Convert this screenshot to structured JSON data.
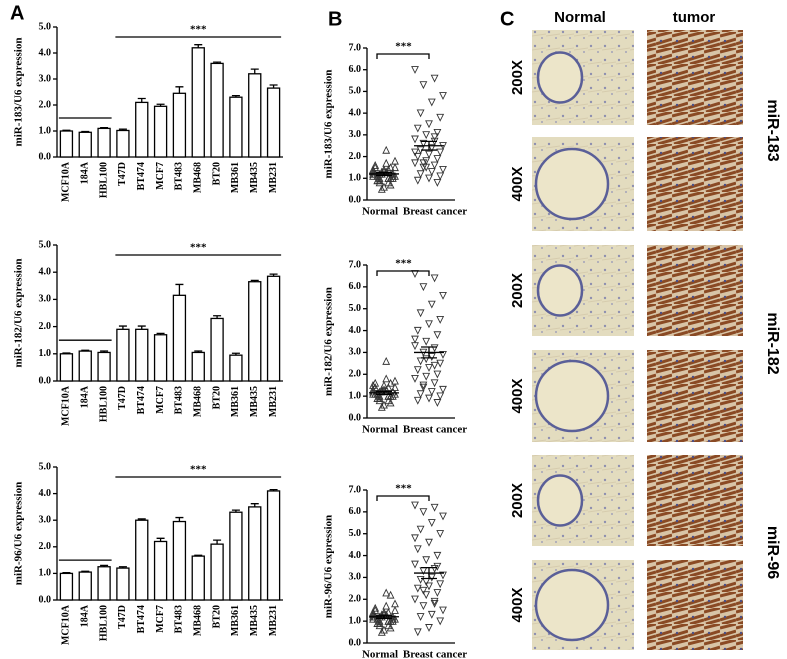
{
  "panel_labels": [
    "A",
    "B",
    "C"
  ],
  "chart_data": [
    {
      "type": "bar",
      "y_label": "miR-183/U6 expression",
      "annotation": "***",
      "categories": [
        "MCF10A",
        "184A",
        "HBL100",
        "T47D",
        "BT474",
        "MCF7",
        "BT483",
        "MB468",
        "BT20",
        "MB361",
        "MB435",
        "MB231"
      ],
      "values": [
        1.0,
        0.95,
        1.1,
        1.02,
        2.1,
        1.95,
        2.45,
        4.2,
        3.6,
        2.3,
        3.2,
        2.65
      ],
      "errors": [
        0.03,
        0.03,
        0.03,
        0.05,
        0.15,
        0.08,
        0.25,
        0.12,
        0.05,
        0.06,
        0.18,
        0.12
      ],
      "color": "#ffffff",
      "ylim": [
        0,
        5
      ],
      "yticks": [
        {
          "value": 0,
          "label": "0.0"
        },
        {
          "value": 1,
          "label": "1.0"
        },
        {
          "value": 2,
          "label": "2.0"
        },
        {
          "value": 3,
          "label": "3.0"
        },
        {
          "value": 4,
          "label": "4.0"
        },
        {
          "value": 5,
          "label": "5.0"
        }
      ]
    },
    {
      "type": "bar",
      "y_label": "miR-182/U6 expression",
      "annotation": "***",
      "categories": [
        "MCF10A",
        "184A",
        "HBL100",
        "T47D",
        "BT474",
        "MCF7",
        "BT483",
        "MB468",
        "BT20",
        "MB361",
        "MB435",
        "MB231"
      ],
      "values": [
        1.0,
        1.1,
        1.05,
        1.9,
        1.9,
        1.7,
        3.15,
        1.05,
        2.3,
        0.95,
        3.65,
        3.85
      ],
      "errors": [
        0.03,
        0.03,
        0.05,
        0.12,
        0.12,
        0.05,
        0.4,
        0.05,
        0.1,
        0.07,
        0.05,
        0.08
      ],
      "color": "#ffffff",
      "ylim": [
        0,
        5
      ],
      "yticks": [
        {
          "value": 0,
          "label": "0.0"
        },
        {
          "value": 1,
          "label": "1.0"
        },
        {
          "value": 2,
          "label": "2.0"
        },
        {
          "value": 3,
          "label": "3.0"
        },
        {
          "value": 4,
          "label": "4.0"
        },
        {
          "value": 5,
          "label": "5.0"
        }
      ]
    },
    {
      "type": "bar",
      "y_label": "miR-96/U6 expression",
      "annotation": "***",
      "categories": [
        "MCF10A",
        "184A",
        "HBL100",
        "T47D",
        "BT474",
        "MCF7",
        "BT483",
        "MB468",
        "BT20",
        "MB361",
        "MB435",
        "MB231"
      ],
      "values": [
        1.0,
        1.05,
        1.25,
        1.2,
        3.0,
        2.2,
        2.95,
        1.65,
        2.1,
        3.3,
        3.5,
        4.1
      ],
      "errors": [
        0.03,
        0.03,
        0.05,
        0.05,
        0.05,
        0.12,
        0.15,
        0.03,
        0.15,
        0.08,
        0.12,
        0.05
      ],
      "color": "#ffffff",
      "ylim": [
        0,
        5
      ],
      "yticks": [
        {
          "value": 0,
          "label": "0.0"
        },
        {
          "value": 1,
          "label": "1.0"
        },
        {
          "value": 2,
          "label": "2.0"
        },
        {
          "value": 3,
          "label": "3.0"
        },
        {
          "value": 4,
          "label": "4.0"
        },
        {
          "value": 5,
          "label": "5.0"
        }
      ]
    },
    {
      "type": "strip",
      "y_label": "miR-183/U6 expression",
      "annotation": "***",
      "categories": [
        "Normal",
        "Breast cancer"
      ],
      "groups": [
        {
          "values": [
            1.2,
            1.0,
            0.8,
            1.5,
            1.3,
            0.9,
            1.1,
            1.4,
            1.6,
            0.7,
            1.2,
            1.3,
            1.0,
            0.9,
            1.8,
            2.3,
            1.1,
            1.2,
            0.6,
            1.5,
            1.0,
            1.3,
            1.4,
            0.8,
            1.2,
            1.1,
            1.7,
            0.9,
            1.0,
            1.3,
            1.2,
            1.5,
            0.5,
            1.1,
            1.4,
            1.0
          ],
          "mean": 1.2,
          "sem": 0.07
        },
        {
          "values": [
            6.0,
            5.6,
            5.3,
            4.8,
            4.5,
            4.0,
            3.8,
            3.5,
            3.3,
            3.1,
            3.0,
            2.8,
            2.7,
            2.6,
            2.5,
            2.4,
            2.3,
            2.2,
            2.1,
            2.0,
            1.9,
            1.8,
            1.7,
            1.6,
            1.5,
            1.4,
            1.3,
            1.2,
            1.1,
            1.0,
            0.9,
            0.8,
            1.5,
            2.2,
            2.9,
            1.7
          ],
          "mean": 2.5,
          "sem": 0.2
        }
      ],
      "ylim": [
        0,
        7
      ],
      "yticks": [
        {
          "value": 0,
          "label": "0.0"
        },
        {
          "value": 1,
          "label": "1.0"
        },
        {
          "value": 2,
          "label": "2.0"
        },
        {
          "value": 3,
          "label": "3.0"
        },
        {
          "value": 4,
          "label": "4.0"
        },
        {
          "value": 5,
          "label": "5.0"
        },
        {
          "value": 6,
          "label": "6.0"
        },
        {
          "value": 7,
          "label": "7.0"
        }
      ]
    },
    {
      "type": "strip",
      "y_label": "miR-182/U6 expression",
      "annotation": "***",
      "categories": [
        "Normal",
        "Breast cancer"
      ],
      "groups": [
        {
          "values": [
            1.1,
            1.0,
            0.8,
            1.4,
            1.3,
            0.9,
            1.2,
            1.5,
            1.6,
            0.7,
            1.2,
            1.3,
            1.0,
            0.9,
            1.7,
            2.6,
            1.1,
            1.2,
            0.6,
            1.4,
            1.0,
            1.3,
            1.5,
            0.8,
            1.2,
            1.1,
            1.8,
            0.9,
            1.0,
            1.3,
            1.1,
            1.6,
            0.5,
            1.2,
            1.4,
            1.0
          ],
          "mean": 1.15,
          "sem": 0.07
        },
        {
          "values": [
            6.6,
            6.4,
            6.0,
            5.6,
            5.2,
            4.8,
            4.5,
            4.3,
            4.0,
            3.8,
            3.5,
            3.3,
            3.2,
            3.0,
            2.9,
            2.8,
            2.6,
            2.5,
            2.3,
            2.2,
            2.0,
            1.9,
            1.8,
            1.6,
            1.5,
            1.3,
            1.2,
            1.1,
            1.0,
            0.9,
            0.8,
            0.7,
            2.7,
            3.6,
            2.4,
            1.4
          ],
          "mean": 3.0,
          "sem": 0.25
        }
      ],
      "ylim": [
        0,
        7
      ],
      "yticks": [
        {
          "value": 0,
          "label": "0.0"
        },
        {
          "value": 1,
          "label": "1.0"
        },
        {
          "value": 2,
          "label": "2.0"
        },
        {
          "value": 3,
          "label": "3.0"
        },
        {
          "value": 4,
          "label": "4.0"
        },
        {
          "value": 5,
          "label": "5.0"
        },
        {
          "value": 6,
          "label": "6.0"
        },
        {
          "value": 7,
          "label": "7.0"
        }
      ]
    },
    {
      "type": "strip",
      "y_label": "miR-96/U6 expression",
      "annotation": "***",
      "categories": [
        "Normal",
        "Breast cancer"
      ],
      "groups": [
        {
          "values": [
            1.2,
            1.0,
            0.8,
            1.5,
            1.3,
            0.9,
            1.1,
            1.4,
            1.6,
            0.7,
            1.2,
            1.3,
            1.0,
            0.9,
            1.8,
            2.3,
            1.1,
            1.2,
            0.6,
            1.5,
            1.0,
            1.3,
            1.4,
            0.8,
            1.2,
            1.1,
            1.7,
            0.9,
            1.0,
            1.3,
            1.2,
            2.2,
            0.5,
            1.1,
            1.4,
            1.0
          ],
          "mean": 1.2,
          "sem": 0.07
        },
        {
          "values": [
            6.3,
            6.2,
            6.0,
            5.8,
            5.5,
            5.2,
            5.0,
            4.6,
            4.3,
            4.0,
            3.8,
            3.6,
            3.4,
            3.3,
            3.1,
            3.0,
            2.9,
            2.7,
            2.6,
            2.5,
            2.3,
            2.2,
            2.0,
            1.9,
            1.7,
            1.5,
            1.3,
            1.2,
            1.0,
            0.7,
            0.5,
            3.5,
            2.8,
            4.8,
            1.8,
            2.4
          ],
          "mean": 3.2,
          "sem": 0.25
        }
      ],
      "ylim": [
        0,
        7
      ],
      "yticks": [
        {
          "value": 0,
          "label": "0.0"
        },
        {
          "value": 1,
          "label": "1.0"
        },
        {
          "value": 2,
          "label": "2.0"
        },
        {
          "value": 3,
          "label": "3.0"
        },
        {
          "value": 4,
          "label": "4.0"
        },
        {
          "value": 5,
          "label": "5.0"
        },
        {
          "value": 6,
          "label": "6.0"
        },
        {
          "value": 7,
          "label": "7.0"
        }
      ]
    }
  ],
  "micrographs": {
    "columns": [
      "Normal",
      "tumor"
    ],
    "magnifications": [
      "200X",
      "400X",
      "200X",
      "400X",
      "200X",
      "400X"
    ],
    "row_labels": [
      "miR-183",
      "miR-182",
      "miR-96"
    ]
  }
}
